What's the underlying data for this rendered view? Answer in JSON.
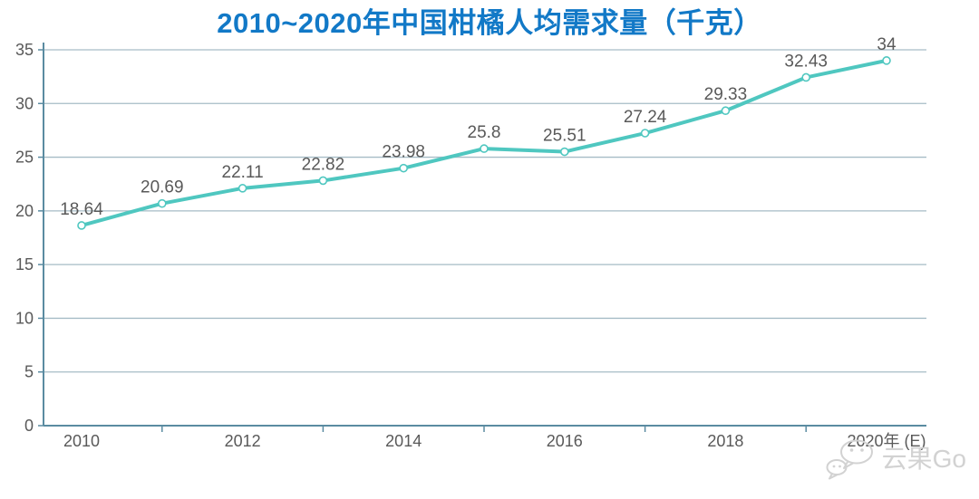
{
  "title": "2010~2020年中国柑橘人均需求量（千克）",
  "watermark": {
    "text": "云果Go",
    "icon": "wechat-chat-bubbles-icon"
  },
  "colors": {
    "title": "#1279c7",
    "line": "#4fc7c0",
    "marker_fill": "#ffffff",
    "grid": "#a6bcc6",
    "axis": "#5a8ba1",
    "label_text": "#595959",
    "watermark": "#d2d2d2",
    "background": "#ffffff"
  },
  "chart_data": {
    "type": "line",
    "title": "2010~2020年中国柑橘人均需求量（千克）",
    "x": [
      2010,
      2011,
      2012,
      2013,
      2014,
      2015,
      2016,
      2017,
      2018,
      2019,
      2020
    ],
    "values": [
      18.64,
      20.69,
      22.11,
      22.82,
      23.98,
      25.8,
      25.51,
      27.24,
      29.33,
      32.43,
      34
    ],
    "point_labels": [
      "18.64",
      "20.69",
      "22.11",
      "22.82",
      "23.98",
      "25.8",
      "25.51",
      "27.24",
      "29.33",
      "32.43",
      "34"
    ],
    "xtick_years": [
      2010,
      2012,
      2014,
      2016,
      2018,
      2020
    ],
    "xtick_labels": [
      "2010",
      "2012",
      "2014",
      "2016",
      "2018",
      "2020年 (E)"
    ],
    "boundary_tick_years": [
      2011,
      2013,
      2015,
      2017,
      2019
    ],
    "yticks": [
      0,
      5,
      10,
      15,
      20,
      25,
      30,
      35
    ],
    "ylim": [
      0,
      35
    ],
    "xlabel": "",
    "ylabel": "",
    "grid": true,
    "legend": false,
    "marker": "open-circle"
  }
}
